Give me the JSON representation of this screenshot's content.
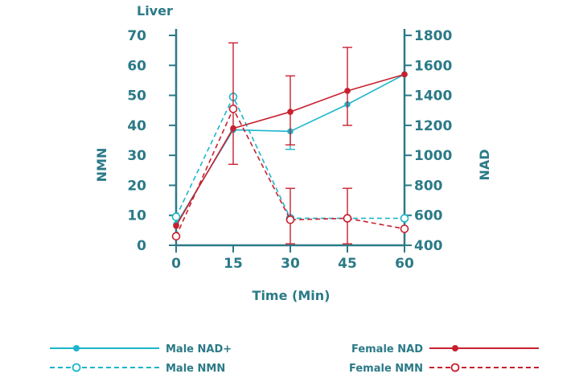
{
  "chart_data": {
    "type": "line",
    "title": "Liver",
    "xlabel": "Time (Min)",
    "ylabel_left": "NMN",
    "ylabel_right": "NAD",
    "x": [
      0,
      15,
      30,
      45,
      60
    ],
    "xticks": [
      "0",
      "15",
      "30",
      "45",
      "60"
    ],
    "ylim_left": [
      0,
      70
    ],
    "yticks_left": [
      "0",
      "10",
      "20",
      "30",
      "40",
      "50",
      "60",
      "70"
    ],
    "ylim_right": [
      400,
      1800
    ],
    "yticks_right": [
      "400",
      "600",
      "800",
      "1000",
      "1200",
      "1400",
      "1600",
      "1800"
    ],
    "grid": false,
    "legend_position": "bottom",
    "series": [
      {
        "name": "Male NAD+",
        "axis": "right",
        "values": [
          540,
          1170,
          1160,
          1340,
          1540
        ],
        "error_upper": [
          null,
          null,
          null,
          null,
          null
        ],
        "error_lower": [
          null,
          null,
          1040,
          null,
          null
        ],
        "color": "#1cb6cc",
        "style": "solid",
        "marker": "filled"
      },
      {
        "name": "Male NMN",
        "axis": "left",
        "values": [
          9.5,
          49.5,
          9,
          9,
          9
        ],
        "error_upper": [
          null,
          null,
          null,
          null,
          null
        ],
        "error_lower": [
          null,
          null,
          null,
          null,
          null
        ],
        "color": "#1cb6cc",
        "style": "dashed",
        "marker": "open"
      },
      {
        "name": "Female NAD",
        "axis": "right",
        "values": [
          530,
          1180,
          1290,
          1430,
          1540
        ],
        "error_upper": [
          null,
          1750,
          1530,
          1720,
          null
        ],
        "error_lower": [
          null,
          940,
          1070,
          1200,
          null
        ],
        "color": "#c8202f",
        "style": "solid",
        "marker": "filled"
      },
      {
        "name": "Female NMN",
        "axis": "left",
        "values": [
          3,
          45.5,
          8.5,
          9,
          5.5
        ],
        "error_upper": [
          null,
          null,
          19,
          19,
          null
        ],
        "error_lower": [
          null,
          null,
          0.5,
          0.5,
          null
        ],
        "color": "#c8202f",
        "style": "dashed",
        "marker": "open"
      }
    ]
  },
  "colors": {
    "axis": "#2b7a87",
    "male": "#1cb6cc",
    "female": "#c8202f",
    "overlap_marker": "#5b2a31"
  }
}
